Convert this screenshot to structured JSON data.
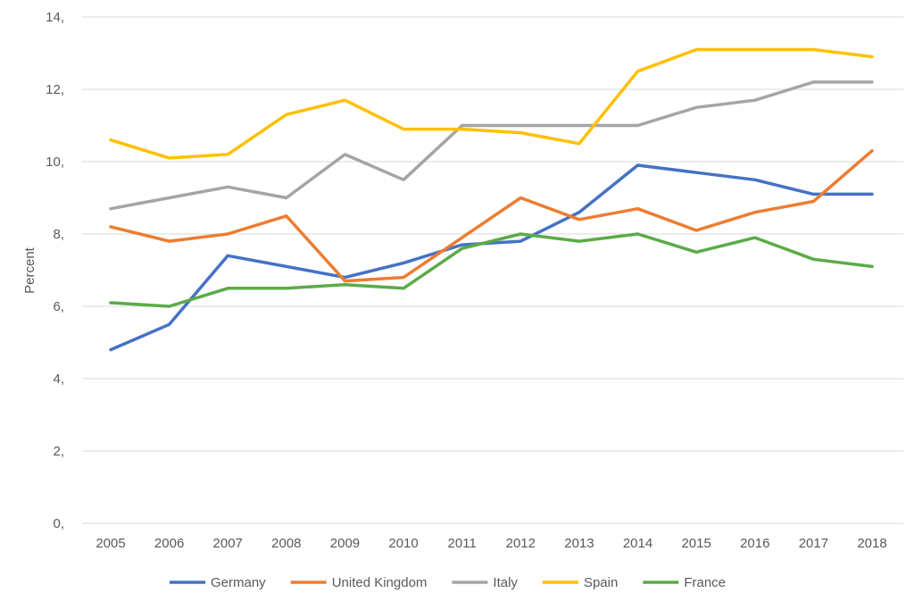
{
  "chart_data": {
    "type": "line",
    "title": "",
    "xlabel": "",
    "ylabel": "Percent",
    "ylim": [
      0,
      14
    ],
    "y_ticks": [
      0,
      2,
      4,
      6,
      8,
      10,
      12,
      14
    ],
    "y_tick_labels": [
      "0,",
      "2,",
      "4,",
      "6,",
      "8,",
      "10,",
      "12,",
      "14,"
    ],
    "grid": "horizontal",
    "legend_position": "bottom",
    "categories": [
      "2005",
      "2006",
      "2007",
      "2008",
      "2009",
      "2010",
      "2011",
      "2012",
      "2013",
      "2014",
      "2015",
      "2016",
      "2017",
      "2018"
    ],
    "series": [
      {
        "name": "Germany",
        "color": "#4472C4",
        "values": [
          4.8,
          5.5,
          7.4,
          7.1,
          6.8,
          7.2,
          7.7,
          7.8,
          8.6,
          9.9,
          9.7,
          9.5,
          9.1,
          9.1
        ]
      },
      {
        "name": "United Kingdom",
        "color": "#ED7D31",
        "values": [
          8.2,
          7.8,
          8.0,
          8.5,
          6.7,
          6.8,
          7.9,
          9.0,
          8.4,
          8.7,
          8.1,
          8.6,
          8.9,
          10.3
        ]
      },
      {
        "name": "Italy",
        "color": "#A5A5A5",
        "values": [
          8.7,
          9.0,
          9.3,
          9.0,
          10.2,
          9.5,
          11.0,
          11.0,
          11.0,
          11.0,
          11.5,
          11.7,
          12.2,
          12.2
        ]
      },
      {
        "name": "Spain",
        "color": "#FFC000",
        "values": [
          10.6,
          10.1,
          10.2,
          11.3,
          11.7,
          10.9,
          10.9,
          10.8,
          10.5,
          12.5,
          13.1,
          13.1,
          13.1,
          12.9
        ]
      },
      {
        "name": "France",
        "color": "#5BAB48",
        "values": [
          6.1,
          6.0,
          6.5,
          6.5,
          6.6,
          6.5,
          7.6,
          8.0,
          7.8,
          8.0,
          7.5,
          7.9,
          7.3,
          7.1
        ]
      }
    ]
  }
}
